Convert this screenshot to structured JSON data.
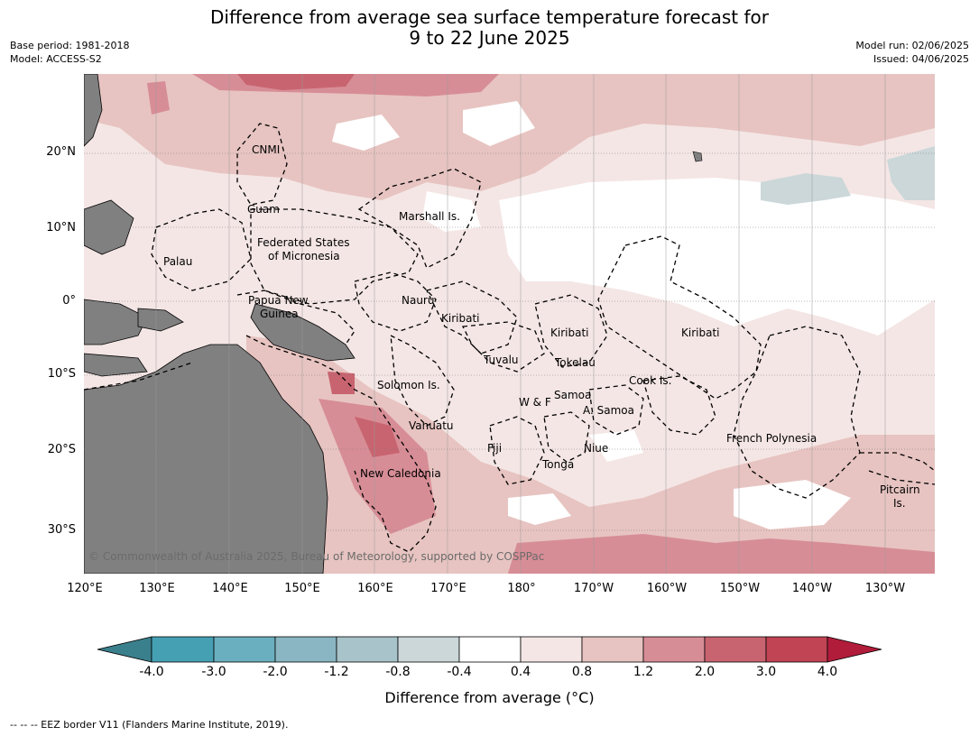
{
  "title": {
    "line1": "Difference from average sea surface temperature forecast for",
    "line2": "9 to 22 June 2025"
  },
  "meta": {
    "base_period": "Base period: 1981-2018",
    "model": "Model: ACCESS-S2",
    "model_run": "Model run: 02/06/2025",
    "issued": "Issued: 04/06/2025"
  },
  "lat_labels": [
    "20°N",
    "10°N",
    "0°",
    "10°S",
    "20°S",
    "30°S"
  ],
  "lon_labels": [
    "120°E",
    "130°E",
    "140°E",
    "150°E",
    "160°E",
    "170°E",
    "180°",
    "170°W",
    "160°W",
    "150°W",
    "140°W",
    "130°W"
  ],
  "places": {
    "cnmi": "CNMI",
    "guam": "Guam",
    "marshall": "Marshall Is.",
    "fsm1": "Federated States",
    "fsm2": "of Micronesia",
    "palau": "Palau",
    "png1": "Papua New",
    "png2": "Guinea",
    "nauru": "Nauru",
    "kiribati_w": "Kiribati",
    "kiribati_c": "Kiribati",
    "kiribati_e": "Kiribati",
    "tuvalu": "Tuvalu",
    "tokelau": "Tokelau",
    "cook": "Cook Is.",
    "solomon": "Solomon Is.",
    "samoa": "Samoa",
    "wf": "W & F",
    "asamoa": "A. Samoa",
    "vanuatu": "Vanuatu",
    "fiji": "Fiji",
    "niue": "Niue",
    "tonga": "Tonga",
    "frpoly": "French Polynesia",
    "newcal": "New Caledonia",
    "pitcairn1": "Pitcairn",
    "pitcairn2": "Is."
  },
  "copyright": "© Commonwealth of Australia 2025, Bureau of Meteorology, supported by COSPPac",
  "colorbar": {
    "label": "Difference from average (°C)",
    "ticks": [
      "-4.0",
      "-3.0",
      "-2.0",
      "-1.2",
      "-0.8",
      "-0.4",
      "0.4",
      "0.8",
      "1.2",
      "2.0",
      "3.0",
      "4.0"
    ],
    "colors": {
      "below": "#3a7f8c",
      "c1": "#46a0b3",
      "c2": "#6aafbf",
      "c3": "#89b6c2",
      "c4": "#a8c4ca",
      "c5": "#cbd7d9",
      "c6": "#ffffff",
      "c7": "#f4e6e5",
      "c8": "#e7c4c1",
      "c9": "#d78d96",
      "c10": "#c86470",
      "c11": "#c04454",
      "above": "#b01c3a",
      "land": "#808080"
    }
  },
  "footnote": "--  --  -- EEZ border V11 (Flanders Marine Institute, 2019)."
}
